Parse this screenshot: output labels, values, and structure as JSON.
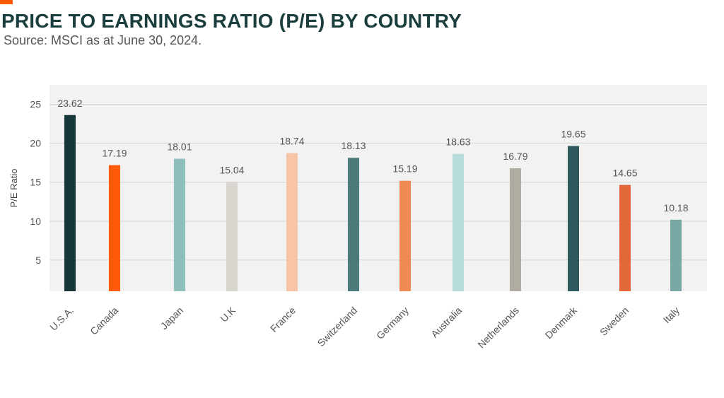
{
  "title": "PRICE TO EARNINGS RATIO (P/E) BY COUNTRY",
  "subtitle": "Source: MSCI as at June 30, 2024.",
  "colors": {
    "accent": "#ff5a0a",
    "plot_background": "#f2f2f2",
    "grid": "#d4d4d4"
  },
  "chart_data": {
    "type": "bar",
    "categories": [
      "U.S.A.",
      "Canada",
      "Japan",
      "U.K",
      "France",
      "Switzerland",
      "Germany",
      "Australia",
      "Netherlands",
      "Denmark",
      "Sweden",
      "Italy"
    ],
    "values": [
      23.62,
      17.19,
      18.01,
      15.04,
      18.74,
      18.13,
      15.19,
      18.63,
      16.79,
      19.65,
      14.65,
      10.18
    ],
    "data_labels": [
      "23.62",
      "17.19",
      "18.01",
      "15.04",
      "18.74",
      "18.13",
      "15.19",
      "18.63",
      "16.79",
      "19.65",
      "14.65",
      "10.18"
    ],
    "bar_colors": [
      "#17363a",
      "#ff5a0a",
      "#8fbfbd",
      "#d9d6d0",
      "#f8c4a8",
      "#4b7a7a",
      "#ef8a55",
      "#b7dcda",
      "#b0aca2",
      "#2e5a5e",
      "#e2683a",
      "#79a7a4"
    ],
    "ylabel": "P/E Ratio",
    "xlabel": "",
    "yticks": [
      5,
      10,
      15,
      20,
      25
    ],
    "ylim": [
      1,
      27.5
    ],
    "grid": true,
    "legend": "none"
  }
}
